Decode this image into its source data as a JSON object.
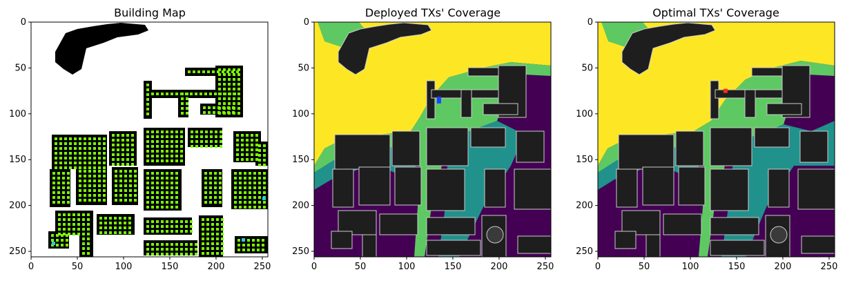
{
  "figure": {
    "panels": [
      {
        "title": "Building Map",
        "xticks": [
          "0",
          "50",
          "100",
          "150",
          "200",
          "250"
        ],
        "yticks": [
          "0",
          "50",
          "100",
          "150",
          "200",
          "250"
        ],
        "colors": {
          "background": "#ffffff",
          "building": "#000000",
          "point": "#7cfc00",
          "highlight": "#29c8e6"
        }
      },
      {
        "title": "Deployed TXs' Coverage",
        "xticks": [
          "0",
          "50",
          "100",
          "150",
          "200",
          "250"
        ],
        "yticks": [
          "0",
          "50",
          "100",
          "150",
          "200",
          "250"
        ],
        "colors": {
          "high": "#fde725",
          "mid_high": "#5ec962",
          "mid": "#21918c",
          "low": "#440154",
          "building": "#1e1e1e",
          "tx_marker": "#1f3fff"
        }
      },
      {
        "title": "Optimal TXs' Coverage",
        "xticks": [
          "0",
          "50",
          "100",
          "150",
          "200",
          "250"
        ],
        "yticks": [
          "0",
          "50",
          "100",
          "150",
          "200",
          "250"
        ],
        "colors": {
          "high": "#fde725",
          "mid_high": "#5ec962",
          "mid": "#21918c",
          "low": "#440154",
          "building": "#1e1e1e",
          "tx_marker": "#ff2a1a"
        }
      }
    ]
  },
  "chart_data": [
    {
      "type": "heatmap",
      "title": "Building Map",
      "xlim": [
        0,
        256
      ],
      "ylim": [
        256,
        0
      ],
      "xticks": [
        0,
        50,
        100,
        150,
        200,
        250
      ],
      "yticks": [
        0,
        50,
        100,
        150,
        200,
        250
      ],
      "grid": false
    },
    {
      "type": "heatmap",
      "title": "Deployed TXs' Coverage",
      "xlim": [
        0,
        256
      ],
      "ylim": [
        256,
        0
      ],
      "xticks": [
        0,
        50,
        100,
        150,
        200,
        250
      ],
      "yticks": [
        0,
        50,
        100,
        150,
        200,
        250
      ],
      "tx_location": [
        135,
        85
      ],
      "grid": false
    },
    {
      "type": "heatmap",
      "title": "Optimal TXs' Coverage",
      "xlim": [
        0,
        256
      ],
      "ylim": [
        256,
        0
      ],
      "xticks": [
        0,
        50,
        100,
        150,
        200,
        250
      ],
      "yticks": [
        0,
        50,
        100,
        150,
        200,
        250
      ],
      "tx_location": [
        138,
        75
      ],
      "grid": false
    }
  ]
}
